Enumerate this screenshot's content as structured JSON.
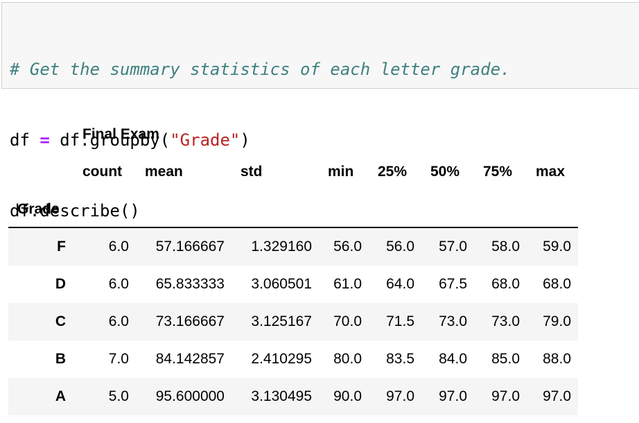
{
  "code": {
    "comment": "# Get the summary statistics of each letter grade.",
    "line2": {
      "lhs": "df",
      "op": "=",
      "call": "df.groupby(",
      "arg": "\"Grade\"",
      "close": ")"
    },
    "line3": "df.describe()"
  },
  "table": {
    "top_header": "Final Exam",
    "columns": [
      "count",
      "mean",
      "std",
      "min",
      "25%",
      "50%",
      "75%",
      "max"
    ],
    "index_name": "Grade",
    "rows": [
      {
        "index": "F",
        "cells": [
          "6.0",
          "57.166667",
          "1.329160",
          "56.0",
          "56.0",
          "57.0",
          "58.0",
          "59.0"
        ]
      },
      {
        "index": "D",
        "cells": [
          "6.0",
          "65.833333",
          "3.060501",
          "61.0",
          "64.0",
          "67.5",
          "68.0",
          "68.0"
        ]
      },
      {
        "index": "C",
        "cells": [
          "6.0",
          "73.166667",
          "3.125167",
          "70.0",
          "71.5",
          "73.0",
          "73.0",
          "79.0"
        ]
      },
      {
        "index": "B",
        "cells": [
          "7.0",
          "84.142857",
          "2.410295",
          "80.0",
          "83.5",
          "84.0",
          "85.0",
          "88.0"
        ]
      },
      {
        "index": "A",
        "cells": [
          "5.0",
          "95.600000",
          "3.130495",
          "90.0",
          "97.0",
          "97.0",
          "97.0",
          "97.0"
        ]
      }
    ]
  }
}
